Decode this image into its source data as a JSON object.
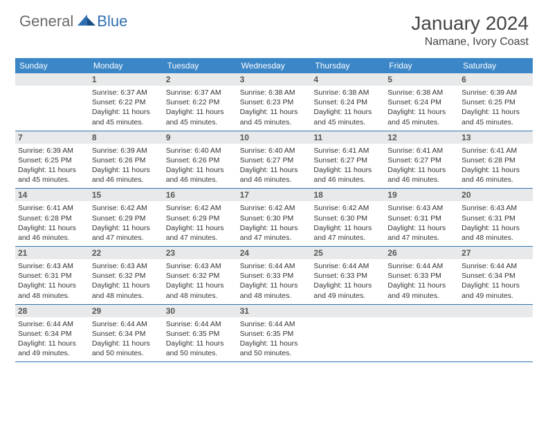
{
  "logo": {
    "text1": "General",
    "text2": "Blue"
  },
  "title": "January 2024",
  "location": "Namane, Ivory Coast",
  "colors": {
    "header_bg": "#3b86c7",
    "header_text": "#ffffff",
    "daynum_bg": "#e8e9ea",
    "border": "#2f6fb0",
    "logo_gray": "#6a6a6a",
    "logo_blue": "#2f6fb0"
  },
  "day_headers": [
    "Sunday",
    "Monday",
    "Tuesday",
    "Wednesday",
    "Thursday",
    "Friday",
    "Saturday"
  ],
  "weeks": [
    [
      {
        "n": "",
        "sr": "",
        "ss": "",
        "dl1": "",
        "dl2": ""
      },
      {
        "n": "1",
        "sr": "Sunrise: 6:37 AM",
        "ss": "Sunset: 6:22 PM",
        "dl1": "Daylight: 11 hours",
        "dl2": "and 45 minutes."
      },
      {
        "n": "2",
        "sr": "Sunrise: 6:37 AM",
        "ss": "Sunset: 6:22 PM",
        "dl1": "Daylight: 11 hours",
        "dl2": "and 45 minutes."
      },
      {
        "n": "3",
        "sr": "Sunrise: 6:38 AM",
        "ss": "Sunset: 6:23 PM",
        "dl1": "Daylight: 11 hours",
        "dl2": "and 45 minutes."
      },
      {
        "n": "4",
        "sr": "Sunrise: 6:38 AM",
        "ss": "Sunset: 6:24 PM",
        "dl1": "Daylight: 11 hours",
        "dl2": "and 45 minutes."
      },
      {
        "n": "5",
        "sr": "Sunrise: 6:38 AM",
        "ss": "Sunset: 6:24 PM",
        "dl1": "Daylight: 11 hours",
        "dl2": "and 45 minutes."
      },
      {
        "n": "6",
        "sr": "Sunrise: 6:39 AM",
        "ss": "Sunset: 6:25 PM",
        "dl1": "Daylight: 11 hours",
        "dl2": "and 45 minutes."
      }
    ],
    [
      {
        "n": "7",
        "sr": "Sunrise: 6:39 AM",
        "ss": "Sunset: 6:25 PM",
        "dl1": "Daylight: 11 hours",
        "dl2": "and 45 minutes."
      },
      {
        "n": "8",
        "sr": "Sunrise: 6:39 AM",
        "ss": "Sunset: 6:26 PM",
        "dl1": "Daylight: 11 hours",
        "dl2": "and 46 minutes."
      },
      {
        "n": "9",
        "sr": "Sunrise: 6:40 AM",
        "ss": "Sunset: 6:26 PM",
        "dl1": "Daylight: 11 hours",
        "dl2": "and 46 minutes."
      },
      {
        "n": "10",
        "sr": "Sunrise: 6:40 AM",
        "ss": "Sunset: 6:27 PM",
        "dl1": "Daylight: 11 hours",
        "dl2": "and 46 minutes."
      },
      {
        "n": "11",
        "sr": "Sunrise: 6:41 AM",
        "ss": "Sunset: 6:27 PM",
        "dl1": "Daylight: 11 hours",
        "dl2": "and 46 minutes."
      },
      {
        "n": "12",
        "sr": "Sunrise: 6:41 AM",
        "ss": "Sunset: 6:27 PM",
        "dl1": "Daylight: 11 hours",
        "dl2": "and 46 minutes."
      },
      {
        "n": "13",
        "sr": "Sunrise: 6:41 AM",
        "ss": "Sunset: 6:28 PM",
        "dl1": "Daylight: 11 hours",
        "dl2": "and 46 minutes."
      }
    ],
    [
      {
        "n": "14",
        "sr": "Sunrise: 6:41 AM",
        "ss": "Sunset: 6:28 PM",
        "dl1": "Daylight: 11 hours",
        "dl2": "and 46 minutes."
      },
      {
        "n": "15",
        "sr": "Sunrise: 6:42 AM",
        "ss": "Sunset: 6:29 PM",
        "dl1": "Daylight: 11 hours",
        "dl2": "and 47 minutes."
      },
      {
        "n": "16",
        "sr": "Sunrise: 6:42 AM",
        "ss": "Sunset: 6:29 PM",
        "dl1": "Daylight: 11 hours",
        "dl2": "and 47 minutes."
      },
      {
        "n": "17",
        "sr": "Sunrise: 6:42 AM",
        "ss": "Sunset: 6:30 PM",
        "dl1": "Daylight: 11 hours",
        "dl2": "and 47 minutes."
      },
      {
        "n": "18",
        "sr": "Sunrise: 6:42 AM",
        "ss": "Sunset: 6:30 PM",
        "dl1": "Daylight: 11 hours",
        "dl2": "and 47 minutes."
      },
      {
        "n": "19",
        "sr": "Sunrise: 6:43 AM",
        "ss": "Sunset: 6:31 PM",
        "dl1": "Daylight: 11 hours",
        "dl2": "and 47 minutes."
      },
      {
        "n": "20",
        "sr": "Sunrise: 6:43 AM",
        "ss": "Sunset: 6:31 PM",
        "dl1": "Daylight: 11 hours",
        "dl2": "and 48 minutes."
      }
    ],
    [
      {
        "n": "21",
        "sr": "Sunrise: 6:43 AM",
        "ss": "Sunset: 6:31 PM",
        "dl1": "Daylight: 11 hours",
        "dl2": "and 48 minutes."
      },
      {
        "n": "22",
        "sr": "Sunrise: 6:43 AM",
        "ss": "Sunset: 6:32 PM",
        "dl1": "Daylight: 11 hours",
        "dl2": "and 48 minutes."
      },
      {
        "n": "23",
        "sr": "Sunrise: 6:43 AM",
        "ss": "Sunset: 6:32 PM",
        "dl1": "Daylight: 11 hours",
        "dl2": "and 48 minutes."
      },
      {
        "n": "24",
        "sr": "Sunrise: 6:44 AM",
        "ss": "Sunset: 6:33 PM",
        "dl1": "Daylight: 11 hours",
        "dl2": "and 48 minutes."
      },
      {
        "n": "25",
        "sr": "Sunrise: 6:44 AM",
        "ss": "Sunset: 6:33 PM",
        "dl1": "Daylight: 11 hours",
        "dl2": "and 49 minutes."
      },
      {
        "n": "26",
        "sr": "Sunrise: 6:44 AM",
        "ss": "Sunset: 6:33 PM",
        "dl1": "Daylight: 11 hours",
        "dl2": "and 49 minutes."
      },
      {
        "n": "27",
        "sr": "Sunrise: 6:44 AM",
        "ss": "Sunset: 6:34 PM",
        "dl1": "Daylight: 11 hours",
        "dl2": "and 49 minutes."
      }
    ],
    [
      {
        "n": "28",
        "sr": "Sunrise: 6:44 AM",
        "ss": "Sunset: 6:34 PM",
        "dl1": "Daylight: 11 hours",
        "dl2": "and 49 minutes."
      },
      {
        "n": "29",
        "sr": "Sunrise: 6:44 AM",
        "ss": "Sunset: 6:34 PM",
        "dl1": "Daylight: 11 hours",
        "dl2": "and 50 minutes."
      },
      {
        "n": "30",
        "sr": "Sunrise: 6:44 AM",
        "ss": "Sunset: 6:35 PM",
        "dl1": "Daylight: 11 hours",
        "dl2": "and 50 minutes."
      },
      {
        "n": "31",
        "sr": "Sunrise: 6:44 AM",
        "ss": "Sunset: 6:35 PM",
        "dl1": "Daylight: 11 hours",
        "dl2": "and 50 minutes."
      },
      {
        "n": "",
        "sr": "",
        "ss": "",
        "dl1": "",
        "dl2": ""
      },
      {
        "n": "",
        "sr": "",
        "ss": "",
        "dl1": "",
        "dl2": ""
      },
      {
        "n": "",
        "sr": "",
        "ss": "",
        "dl1": "",
        "dl2": ""
      }
    ]
  ]
}
